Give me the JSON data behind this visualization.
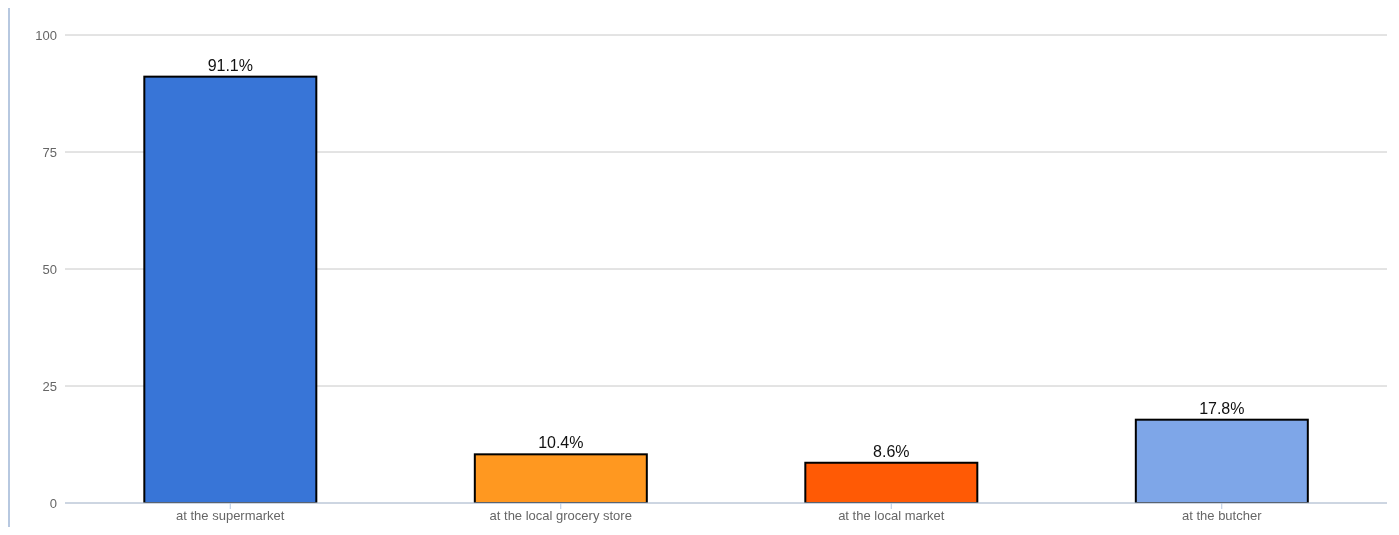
{
  "chart_data": {
    "type": "bar",
    "categories": [
      "at the supermarket",
      "at the local grocery store",
      "at the local market",
      "at the butcher"
    ],
    "values": [
      91.1,
      10.4,
      8.6,
      17.8
    ],
    "colors": [
      "#3875d7",
      "#ff9820",
      "#ff5a05",
      "#7ea6e8"
    ],
    "value_labels": [
      "91.1%",
      "10.4%",
      "8.6%",
      "17.8%"
    ],
    "ylim": [
      0,
      100
    ],
    "yticks": [
      0,
      25,
      50,
      75,
      100
    ],
    "grid": "y"
  }
}
